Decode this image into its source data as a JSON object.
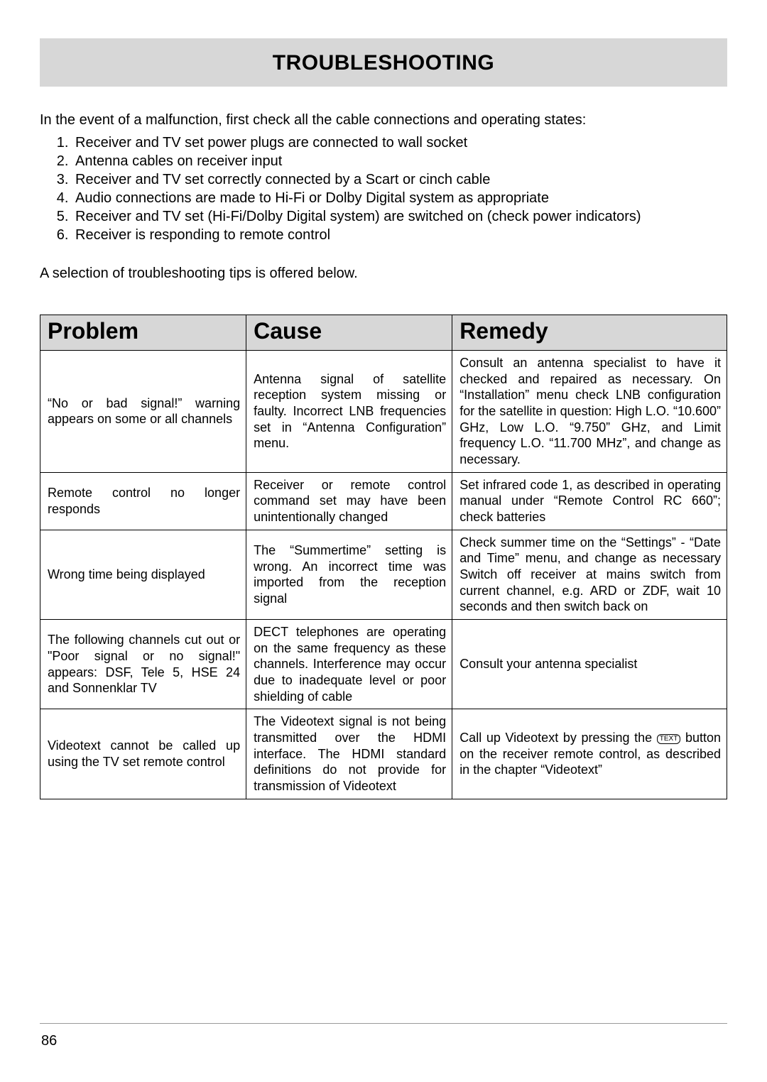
{
  "title": "TROUBLESHOOTING",
  "intro": "In the event of a malfunction, first check all the cable connections and operating states:",
  "checklist": [
    "Receiver and TV set power plugs are connected to wall socket",
    "Antenna cables on receiver input",
    "Receiver and TV set correctly connected by a Scart or cinch cable",
    "Audio connections are made to Hi-Fi or Dolby Digital system as appropriate",
    "Receiver and TV set (Hi-Fi/Dolby Digital system) are switched on (check power indicators)",
    "Receiver is responding to remote control"
  ],
  "tips_intro": "A selection of troubleshooting tips is offered below.",
  "table": {
    "headers": {
      "problem": "Problem",
      "cause": "Cause",
      "remedy": "Remedy"
    },
    "col_widths": [
      "30%",
      "30%",
      "40%"
    ],
    "header_bg": "#d7d7d7",
    "border_color": "#000000",
    "rows": [
      {
        "problem": "“No or bad signal!” warning appears on some or all channels",
        "cause": "Antenna signal of satellite reception system missing or faulty. Incorrect LNB frequencies set in “Antenna Configuration” menu.",
        "remedy": "Consult an antenna specialist to have it checked and repaired as necessary. On “Installation” menu check LNB configuration for the satellite in question: High L.O. “10.600” GHz, Low L.O. “9.750” GHz, and Limit frequency L.O. “11.700 MHz”, and change as necessary."
      },
      {
        "problem": "Remote control no longer responds",
        "cause": "Receiver or remote control command set may have been unintentionally changed",
        "remedy": "Set infrared code 1, as described in operating manual under “Remote Control RC 660”; check batteries"
      },
      {
        "problem": "Wrong time being displayed",
        "cause": "The “Summertime” setting is wrong. An incorrect time was imported from the reception signal",
        "remedy": "Check summer time on the “Settings” - “Date and Time” menu, and change as necessary Switch off receiver at mains switch from current channel, e.g. ARD or ZDF, wait 10 seconds and then switch back on"
      },
      {
        "problem": "The following channels cut out or  \"Poor signal or no signal!\" appears: DSF, Tele 5, HSE 24 and Sonnenklar TV",
        "cause": "DECT telephones are operating on the same frequency as these channels. Interference may occur due to inadequate level or poor shielding of cable",
        "remedy": "Consult your antenna specialist"
      },
      {
        "problem": "Videotext cannot be called up using the TV set remote control",
        "cause": "The Videotext signal is not being transmitted over the HDMI interface. The HDMI standard definitions do not provide for transmission of Videotext",
        "remedy_pre": "Call up Videotext by pressing the ",
        "remedy_icon": "TEXT",
        "remedy_post": " button on the receiver remote control, as described in the chapter “Videotext”"
      }
    ]
  },
  "page_number": "86",
  "colors": {
    "title_bg": "#d7d7d7",
    "body_bg": "#ffffff",
    "text": "#000000"
  },
  "font_sizes": {
    "title": 30,
    "body": 20,
    "table_header": 32,
    "table_cell": 18
  }
}
